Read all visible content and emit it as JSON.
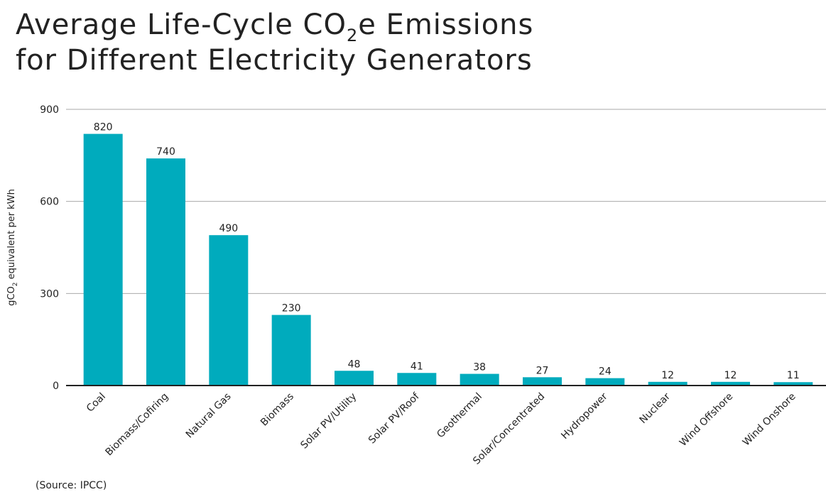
{
  "title": {
    "line1_pre": "Average Life-Cycle CO",
    "line1_sub": "2",
    "line1_post": "e Emissions",
    "line2": "for Different Electricity Generators"
  },
  "source": "(Source: IPCC)",
  "chart_data": {
    "type": "bar",
    "title": "Average Life-Cycle CO2e Emissions for Different Electricity Generators",
    "ylabel_pre": "gCO",
    "ylabel_sub": "2",
    "ylabel_post": " equivalent per kWh",
    "categories": [
      "Coal",
      "Biomass/Cofiring",
      "Natural Gas",
      "Biomass",
      "Solar PV/Utility",
      "Solar PV/Roof",
      "Geothermal",
      "Solar/Concentrated",
      "Hydropower",
      "Nuclear",
      "Wind Offshore",
      "Wind Onshore"
    ],
    "values": [
      820,
      740,
      490,
      230,
      48,
      41,
      38,
      27,
      24,
      12,
      12,
      11
    ],
    "ylim": [
      0,
      900
    ],
    "yticks": [
      0,
      300,
      600,
      900
    ],
    "grid": true,
    "bar_color": "#00abbd"
  }
}
